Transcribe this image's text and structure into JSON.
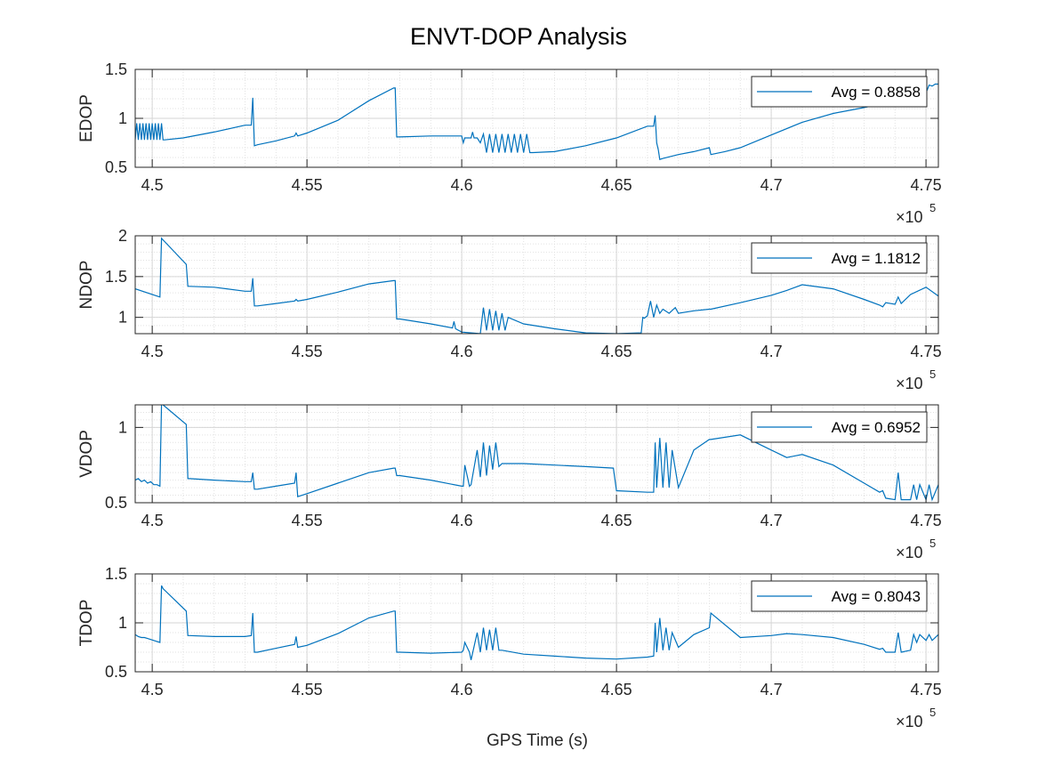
{
  "figure": {
    "title": "ENVT-DOP Analysis",
    "xlabel": "GPS Time (s)",
    "exponent_base": "×10",
    "exponent_power": "5",
    "line_color": "#0072BD"
  },
  "chart_data": [
    {
      "type": "line",
      "ylabel": "EDOP",
      "xlim": [
        449450,
        475400
      ],
      "ylim": [
        0.5,
        1.5
      ],
      "yticks": [
        0.5,
        1,
        1.5
      ],
      "ytick_labels": [
        "0.5",
        "1",
        "1.5"
      ],
      "xticks": [
        450000,
        455000,
        460000,
        465000,
        470000,
        475000
      ],
      "xtick_labels": [
        "4.5",
        "4.55",
        "4.6",
        "4.65",
        "4.7",
        "4.75"
      ],
      "grid": true,
      "minor_grid": true,
      "legend": {
        "label": "Avg = 0.8858",
        "position": "top-right"
      },
      "series": [
        {
          "name": "Avg = 0.8858",
          "x": [
            449450,
            449500,
            449550,
            449600,
            449650,
            449700,
            449750,
            449800,
            449850,
            449900,
            449950,
            450000,
            450050,
            450100,
            450150,
            450200,
            450250,
            450300,
            450350,
            450400,
            451000,
            452000,
            453000,
            453200,
            453250,
            453300,
            453400,
            454000,
            454600,
            454650,
            454700,
            455000,
            456000,
            457000,
            457800,
            457850,
            457900,
            458000,
            459000,
            460000,
            460050,
            460100,
            460250,
            460300,
            460350,
            460400,
            460500,
            460600,
            460700,
            460800,
            460900,
            461000,
            461100,
            461200,
            461300,
            461400,
            461500,
            461600,
            461700,
            461800,
            461900,
            462000,
            462100,
            462200,
            462300,
            463000,
            464000,
            465000,
            466000,
            466200,
            466250,
            466300,
            466350,
            466400,
            466500,
            467000,
            467500,
            468000,
            468050,
            468500,
            469000,
            470000,
            471000,
            472000,
            473000,
            474000,
            475000,
            475100,
            475200,
            475300,
            475400
          ],
          "y": [
            0.78,
            0.95,
            0.78,
            0.95,
            0.78,
            0.95,
            0.78,
            0.95,
            0.78,
            0.95,
            0.78,
            0.95,
            0.78,
            0.95,
            0.78,
            0.95,
            0.78,
            0.95,
            0.78,
            0.78,
            0.8,
            0.86,
            0.93,
            0.93,
            1.21,
            0.72,
            0.73,
            0.77,
            0.82,
            0.85,
            0.82,
            0.85,
            0.98,
            1.18,
            1.31,
            1.31,
            0.81,
            0.81,
            0.82,
            0.82,
            0.75,
            0.8,
            0.8,
            0.8,
            0.86,
            0.8,
            0.8,
            0.75,
            0.84,
            0.65,
            0.84,
            0.65,
            0.84,
            0.65,
            0.84,
            0.65,
            0.84,
            0.65,
            0.84,
            0.65,
            0.84,
            0.65,
            0.84,
            0.65,
            0.65,
            0.66,
            0.72,
            0.8,
            0.92,
            0.92,
            1.03,
            0.75,
            0.68,
            0.58,
            0.59,
            0.63,
            0.66,
            0.7,
            0.63,
            0.66,
            0.7,
            0.83,
            0.96,
            1.05,
            1.11,
            1.18,
            1.26,
            1.34,
            1.33,
            1.35,
            1.35
          ]
        }
      ]
    },
    {
      "type": "line",
      "ylabel": "NDOP",
      "xlim": [
        449450,
        475400
      ],
      "ylim": [
        0.8,
        2
      ],
      "yticks": [
        1,
        1.5,
        2
      ],
      "ytick_labels": [
        "1",
        "1.5",
        "2"
      ],
      "xticks": [
        450000,
        455000,
        460000,
        465000,
        470000,
        475000
      ],
      "xtick_labels": [
        "4.5",
        "4.55",
        "4.6",
        "4.65",
        "4.7",
        "4.75"
      ],
      "grid": true,
      "minor_grid": true,
      "legend": {
        "label": "Avg = 1.1812",
        "position": "top-right"
      },
      "series": [
        {
          "name": "Avg = 1.1812",
          "x": [
            449450,
            450250,
            450300,
            450350,
            451100,
            451150,
            451200,
            452000,
            453000,
            453200,
            453250,
            453300,
            453400,
            454000,
            454600,
            454650,
            454700,
            455000,
            456000,
            457000,
            457800,
            457850,
            457900,
            458000,
            459000,
            459700,
            459750,
            459800,
            460000,
            460600,
            460700,
            460800,
            460900,
            461000,
            461100,
            461200,
            461300,
            461400,
            461500,
            462000,
            463000,
            464000,
            465000,
            465800,
            465850,
            465900,
            466000,
            466100,
            466200,
            466300,
            466400,
            466500,
            466700,
            466900,
            467000,
            467500,
            468000,
            468050,
            469000,
            470000,
            470500,
            471000,
            472000,
            473000,
            473500,
            473600,
            473700,
            474000,
            474100,
            474200,
            474500,
            475000,
            475400
          ],
          "y": [
            1.35,
            1.25,
            1.97,
            1.95,
            1.65,
            1.38,
            1.38,
            1.37,
            1.32,
            1.32,
            1.48,
            1.14,
            1.14,
            1.17,
            1.2,
            1.22,
            1.2,
            1.22,
            1.31,
            1.41,
            1.45,
            1.45,
            0.98,
            0.98,
            0.92,
            0.87,
            0.95,
            0.86,
            0.82,
            0.8,
            1.12,
            0.84,
            1.1,
            0.84,
            1.08,
            0.84,
            1.05,
            0.84,
            1.0,
            0.92,
            0.86,
            0.81,
            0.8,
            0.81,
            1.0,
            0.99,
            1.02,
            1.2,
            1.0,
            1.15,
            1.05,
            1.1,
            1.05,
            1.12,
            1.05,
            1.08,
            1.1,
            1.1,
            1.18,
            1.27,
            1.33,
            1.4,
            1.35,
            1.22,
            1.15,
            1.13,
            1.18,
            1.16,
            1.25,
            1.17,
            1.28,
            1.37,
            1.26
          ]
        }
      ]
    },
    {
      "type": "line",
      "ylabel": "VDOP",
      "xlim": [
        449450,
        475400
      ],
      "ylim": [
        0.5,
        1.15
      ],
      "yticks": [
        0.5,
        1
      ],
      "ytick_labels": [
        "0.5",
        "1"
      ],
      "xticks": [
        450000,
        455000,
        460000,
        465000,
        470000,
        475000
      ],
      "xtick_labels": [
        "4.5",
        "4.55",
        "4.6",
        "4.65",
        "4.7",
        "4.75"
      ],
      "grid": true,
      "minor_grid": true,
      "legend": {
        "label": "Avg = 0.6952",
        "position": "top-right"
      },
      "series": [
        {
          "name": "Avg = 0.6952",
          "x": [
            449450,
            449550,
            449650,
            449750,
            449850,
            449950,
            450050,
            450150,
            450250,
            450300,
            450350,
            451100,
            451150,
            451200,
            452000,
            453000,
            453200,
            453250,
            453300,
            453400,
            454000,
            454600,
            454650,
            454700,
            455000,
            456000,
            457000,
            457800,
            457850,
            457900,
            458000,
            459000,
            460000,
            460050,
            460100,
            460250,
            460300,
            460500,
            460600,
            460700,
            460800,
            460900,
            461000,
            461100,
            461200,
            461300,
            462000,
            463000,
            464000,
            464900,
            465000,
            466000,
            466200,
            466250,
            466300,
            466400,
            466500,
            466600,
            466700,
            466800,
            467000,
            467500,
            468000,
            468050,
            469000,
            470000,
            470500,
            471000,
            472000,
            473000,
            473500,
            473600,
            473700,
            474000,
            474100,
            474200,
            474500,
            474600,
            474700,
            474800,
            475000,
            475100,
            475200,
            475400
          ],
          "y": [
            0.65,
            0.66,
            0.64,
            0.65,
            0.63,
            0.64,
            0.62,
            0.62,
            0.61,
            1.16,
            1.15,
            1.02,
            0.66,
            0.66,
            0.65,
            0.64,
            0.64,
            0.7,
            0.59,
            0.59,
            0.61,
            0.63,
            0.7,
            0.54,
            0.56,
            0.63,
            0.7,
            0.73,
            0.73,
            0.68,
            0.68,
            0.65,
            0.61,
            0.61,
            0.75,
            0.61,
            0.62,
            0.85,
            0.67,
            0.9,
            0.68,
            0.88,
            0.72,
            0.9,
            0.74,
            0.76,
            0.76,
            0.75,
            0.74,
            0.73,
            0.58,
            0.57,
            0.57,
            0.9,
            0.6,
            0.93,
            0.6,
            0.9,
            0.6,
            0.85,
            0.6,
            0.85,
            0.92,
            0.92,
            0.95,
            0.85,
            0.8,
            0.82,
            0.75,
            0.63,
            0.57,
            0.58,
            0.53,
            0.52,
            0.7,
            0.52,
            0.52,
            0.62,
            0.52,
            0.62,
            0.52,
            0.62,
            0.52,
            0.62
          ]
        }
      ]
    },
    {
      "type": "line",
      "ylabel": "TDOP",
      "xlim": [
        449450,
        475400
      ],
      "ylim": [
        0.5,
        1.5
      ],
      "yticks": [
        0.5,
        1,
        1.5
      ],
      "ytick_labels": [
        "0.5",
        "1",
        "1.5"
      ],
      "xticks": [
        450000,
        455000,
        460000,
        465000,
        470000,
        475000
      ],
      "xtick_labels": [
        "4.5",
        "4.55",
        "4.6",
        "4.65",
        "4.7",
        "4.75"
      ],
      "grid": true,
      "minor_grid": true,
      "legend": {
        "label": "Avg = 0.8043",
        "position": "top-right"
      },
      "series": [
        {
          "name": "Avg = 0.8043",
          "x": [
            449450,
            449550,
            449650,
            449750,
            449850,
            449950,
            450050,
            450150,
            450250,
            450300,
            450350,
            451100,
            451150,
            451200,
            452000,
            453000,
            453200,
            453250,
            453300,
            453400,
            454000,
            454600,
            454650,
            454700,
            455000,
            456000,
            457000,
            457800,
            457850,
            457900,
            458000,
            459000,
            460000,
            460050,
            460100,
            460250,
            460300,
            460500,
            460600,
            460700,
            460800,
            460900,
            461000,
            461100,
            461200,
            461300,
            462000,
            463000,
            464000,
            465000,
            466000,
            466200,
            466250,
            466300,
            466400,
            466500,
            466600,
            466700,
            466800,
            467000,
            467500,
            468000,
            468050,
            469000,
            470000,
            470500,
            471000,
            472000,
            473000,
            473500,
            473600,
            473700,
            474000,
            474100,
            474200,
            474500,
            474600,
            474700,
            474800,
            475000,
            475100,
            475200,
            475400
          ],
          "y": [
            0.88,
            0.86,
            0.85,
            0.85,
            0.84,
            0.83,
            0.82,
            0.81,
            0.8,
            1.38,
            1.35,
            1.12,
            0.87,
            0.87,
            0.86,
            0.86,
            0.87,
            1.1,
            0.7,
            0.7,
            0.74,
            0.78,
            0.86,
            0.75,
            0.77,
            0.89,
            1.05,
            1.12,
            1.12,
            0.7,
            0.7,
            0.69,
            0.7,
            0.72,
            0.8,
            0.7,
            0.62,
            0.9,
            0.7,
            0.95,
            0.72,
            0.93,
            0.72,
            0.95,
            0.72,
            0.72,
            0.68,
            0.66,
            0.64,
            0.63,
            0.65,
            0.66,
            1.0,
            0.7,
            1.05,
            0.72,
            0.95,
            0.72,
            0.9,
            0.75,
            0.88,
            0.95,
            1.1,
            0.85,
            0.87,
            0.89,
            0.88,
            0.85,
            0.78,
            0.73,
            0.74,
            0.7,
            0.7,
            0.9,
            0.7,
            0.72,
            0.88,
            0.8,
            0.88,
            0.82,
            0.88,
            0.82,
            0.88
          ]
        }
      ]
    }
  ]
}
